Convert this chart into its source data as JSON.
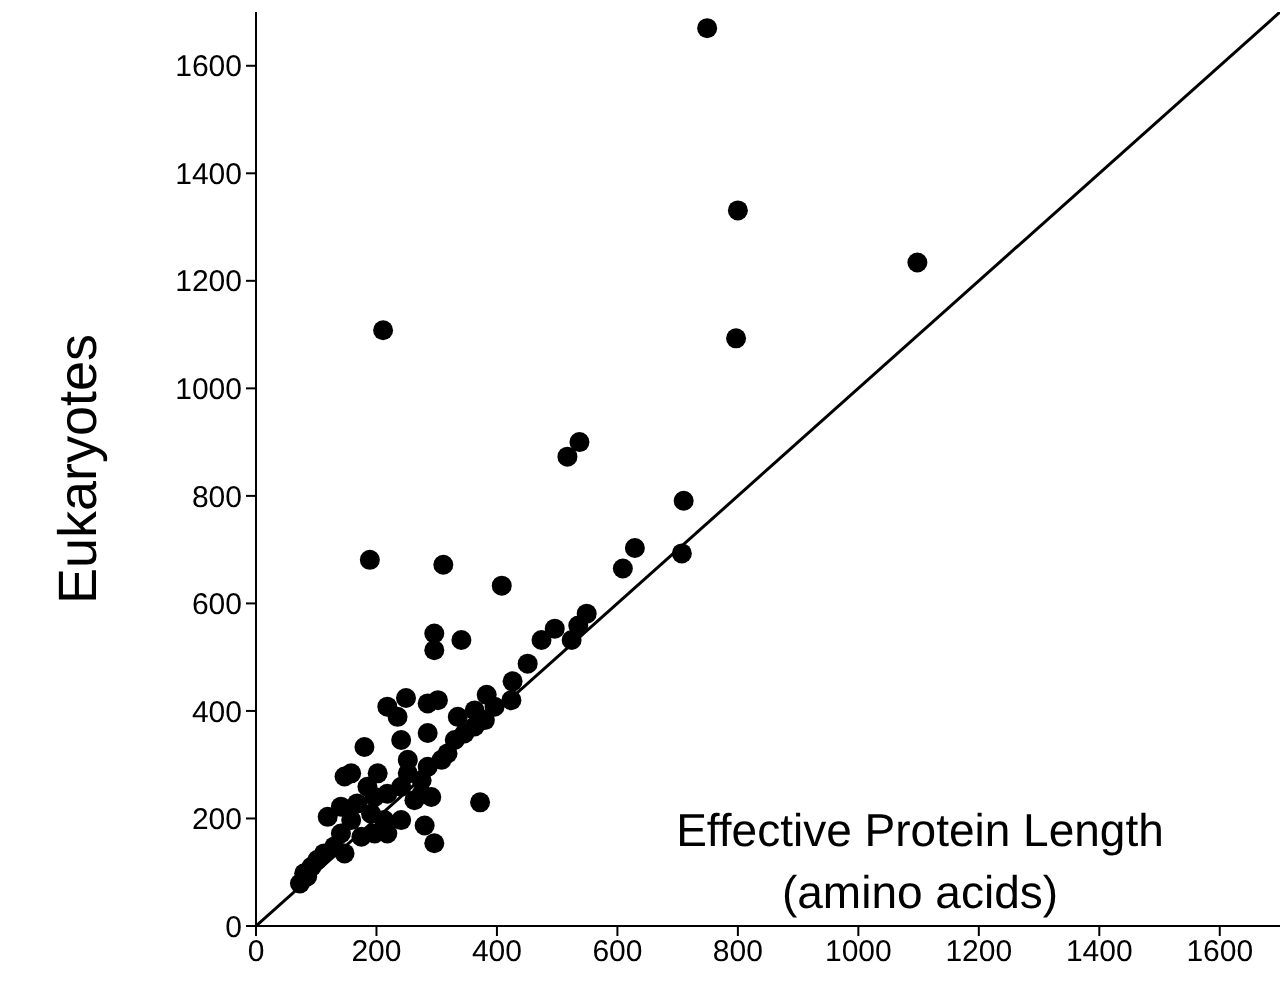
{
  "chart_data": {
    "type": "scatter",
    "ylabel": "Eukaryotes",
    "annotations": [
      "Effective Protein Length (amino acids)"
    ],
    "xlim": [
      0,
      1700
    ],
    "ylim": [
      0,
      1700
    ],
    "xticks": [
      0,
      200,
      400,
      600,
      800,
      1000,
      1200,
      1400,
      1600
    ],
    "yticks": [
      0,
      200,
      400,
      600,
      800,
      1000,
      1200,
      1400,
      1600
    ],
    "series": [
      {
        "color": "#000000",
        "marker": "circle",
        "x": [
          749,
          800,
          1098,
          797,
          211,
          537,
          517,
          710,
          629,
          707,
          609,
          189,
          311,
          408,
          549,
          535,
          524,
          496,
          474,
          451,
          426,
          424,
          383,
          363,
          335,
          296,
          296,
          341,
          302,
          285,
          249,
          218,
          235,
          241,
          285,
          318,
          285,
          252,
          180,
          158,
          147,
          202,
          185,
          218,
          241,
          275,
          291,
          241,
          263,
          372,
          280,
          296,
          218,
          197,
          168,
          141,
          119,
          158,
          141,
          175,
          147,
          130,
          113,
          102,
          92,
          80,
          73,
          85,
          191,
          197,
          213,
          252,
          275,
          308,
          330,
          346,
          363,
          380,
          396
        ],
        "values": [
          1670,
          1331,
          1234,
          1093,
          1108,
          900,
          873,
          791,
          703,
          693,
          665,
          681,
          672,
          633,
          581,
          559,
          532,
          553,
          532,
          488,
          455,
          420,
          430,
          401,
          389,
          544,
          513,
          532,
          420,
          414,
          424,
          408,
          389,
          346,
          359,
          321,
          296,
          309,
          333,
          284,
          278,
          284,
          259,
          246,
          259,
          246,
          240,
          197,
          234,
          230,
          187,
          154,
          172,
          172,
          228,
          222,
          203,
          197,
          172,
          166,
          135,
          148,
          135,
          123,
          110,
          98,
          79,
          92,
          209,
          240,
          197,
          284,
          271,
          309,
          346,
          358,
          371,
          383,
          408
        ]
      },
      {
        "type": "line",
        "color": "#000000",
        "marker": "none",
        "x": [
          0,
          1700
        ],
        "values": [
          0,
          1700
        ]
      }
    ]
  }
}
